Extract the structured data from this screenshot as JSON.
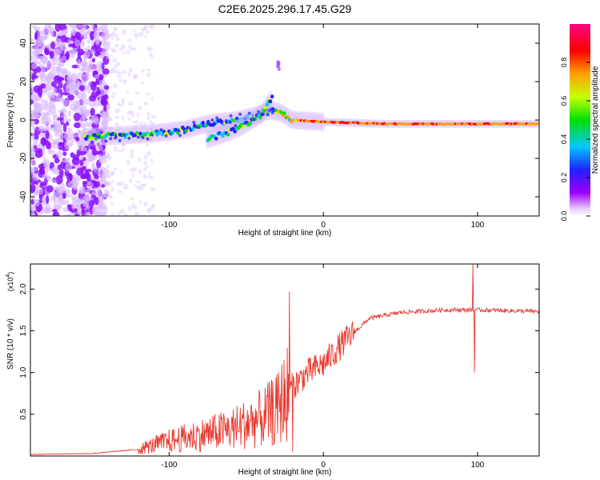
{
  "title": "C2E6.2025.296.17.45.G29",
  "chart_data": [
    {
      "type": "heatmap",
      "name": "spectrogram",
      "xlabel": "Height of straight line (km)",
      "ylabel": "Frequency (Hz)",
      "xlim": [
        -190,
        140
      ],
      "ylim": [
        -50,
        50
      ],
      "xticks": [
        -100,
        0,
        100
      ],
      "yticks": [
        -40,
        -20,
        0,
        20,
        40
      ],
      "colorbar": {
        "label": "Normalized spectral amplitude",
        "range": [
          0,
          1
        ],
        "ticks": [
          0.0,
          0.2,
          0.4,
          0.6,
          0.8
        ],
        "tick_labels": [
          "0.0",
          "0.2",
          "0.4",
          "0.6",
          "0.8"
        ],
        "colors": [
          "#e8c8ff",
          "#a000ff",
          "#2020ff",
          "#00c8ff",
          "#00e000",
          "#c8ff00",
          "#ffa000",
          "#ff0000",
          "#ff0080"
        ]
      },
      "ridges": [
        {
          "name": "carrier-line",
          "x": [
            -155,
            -130,
            -110,
            -90,
            -75,
            -55,
            -45,
            -35,
            -28,
            -20,
            0,
            40,
            80,
            100,
            140
          ],
          "freq": [
            -9,
            -8,
            -7,
            -5,
            -2,
            0,
            2,
            5,
            4,
            0,
            -1,
            -2,
            -2,
            -2,
            -2
          ]
        },
        {
          "name": "secondary-line",
          "x": [
            -75,
            -60,
            -50,
            -40,
            -33
          ],
          "freq": [
            -10,
            -6,
            -2,
            3,
            12
          ]
        }
      ]
    },
    {
      "type": "line",
      "name": "snr",
      "xlabel": "Height of straight line (km)",
      "ylabel": "SNR (10 * v/v)",
      "multiplier": "(x10",
      "multiplier_exp": "4",
      "xlim": [
        -190,
        140
      ],
      "ylim": [
        0,
        2.3
      ],
      "xticks": [
        -100,
        0,
        100
      ],
      "yticks": [
        0.5,
        1.0,
        1.5,
        2.0
      ],
      "ytick_labels": [
        "0.5",
        "1.0",
        "1.5",
        "2.0"
      ],
      "color": "#e8392f",
      "series": [
        {
          "name": "snr-trend",
          "x": [
            -190,
            -150,
            -120,
            -100,
            -80,
            -60,
            -40,
            -30,
            -22,
            -10,
            0,
            10,
            20,
            30,
            50,
            80,
            100,
            140
          ],
          "y": [
            0.02,
            0.03,
            0.08,
            0.18,
            0.25,
            0.32,
            0.45,
            0.55,
            0.8,
            1.0,
            1.1,
            1.3,
            1.48,
            1.65,
            1.72,
            1.75,
            1.75,
            1.73
          ]
        }
      ],
      "spikes": [
        {
          "x": -22,
          "y": 1.97
        },
        {
          "x": -20,
          "y": 0.05
        },
        {
          "x": 97,
          "y": 2.3
        },
        {
          "x": 98,
          "y": 1.0
        }
      ]
    }
  ]
}
